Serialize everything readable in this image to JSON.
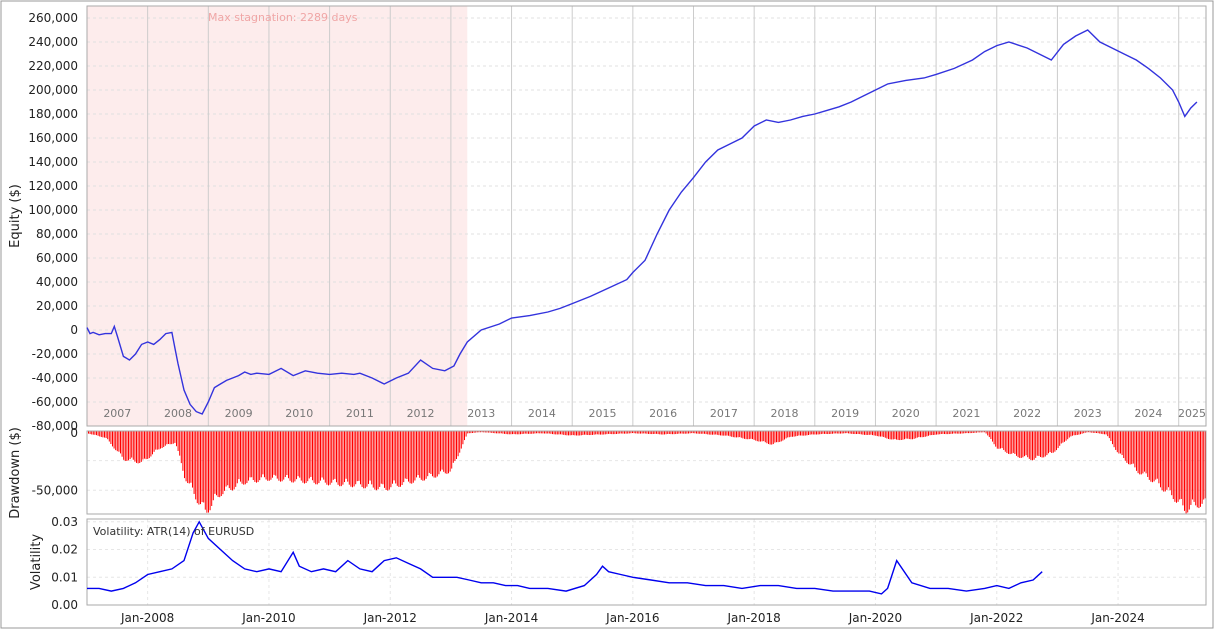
{
  "chart_data": [
    {
      "type": "line",
      "panel": "equity",
      "ylabel": "Equity ($)",
      "ylim": [
        -80000,
        270000
      ],
      "yticks": [
        -80000,
        -60000,
        -40000,
        -20000,
        0,
        20000,
        40000,
        60000,
        80000,
        100000,
        120000,
        140000,
        160000,
        180000,
        200000,
        220000,
        240000,
        260000
      ],
      "ytick_labels": [
        "-80,000",
        "-60,000",
        "-40,000",
        "-20,000",
        "0",
        "20,000",
        "40,000",
        "60,000",
        "80,000",
        "100,000",
        "120,000",
        "140,000",
        "160,000",
        "180,000",
        "200,000",
        "220,000",
        "240,000",
        "260,000"
      ],
      "year_labels": [
        "2007",
        "2008",
        "2009",
        "2010",
        "2011",
        "2012",
        "2013",
        "2014",
        "2015",
        "2016",
        "2017",
        "2018",
        "2019",
        "2020",
        "2021",
        "2022",
        "2023",
        "2024",
        "2025"
      ],
      "highlight": {
        "x_start": 2007.0,
        "x_end": 2013.27,
        "label": "Max stagnation: 2289 days",
        "color": "#fdecec"
      },
      "series": [
        {
          "color": "#3333dd",
          "x": [
            2007.0,
            2007.05,
            2007.1,
            2007.2,
            2007.3,
            2007.4,
            2007.45,
            2007.5,
            2007.6,
            2007.7,
            2007.8,
            2007.9,
            2008.0,
            2008.1,
            2008.2,
            2008.3,
            2008.4,
            2008.45,
            2008.5,
            2008.6,
            2008.7,
            2008.8,
            2008.9,
            2009.0,
            2009.1,
            2009.2,
            2009.3,
            2009.4,
            2009.5,
            2009.6,
            2009.7,
            2009.8,
            2010.0,
            2010.2,
            2010.4,
            2010.6,
            2010.8,
            2011.0,
            2011.2,
            2011.4,
            2011.5,
            2011.7,
            2011.9,
            2012.1,
            2012.3,
            2012.5,
            2012.7,
            2012.9,
            2013.05,
            2013.15,
            2013.27,
            2013.5,
            2013.8,
            2014.0,
            2014.3,
            2014.6,
            2014.8,
            2015.0,
            2015.3,
            2015.6,
            2015.9,
            2016.0,
            2016.2,
            2016.4,
            2016.6,
            2016.8,
            2017.0,
            2017.2,
            2017.4,
            2017.6,
            2017.8,
            2018.0,
            2018.2,
            2018.4,
            2018.6,
            2018.8,
            2019.0,
            2019.2,
            2019.4,
            2019.6,
            2019.8,
            2020.0,
            2020.2,
            2020.5,
            2020.8,
            2021.0,
            2021.3,
            2021.6,
            2021.8,
            2022.0,
            2022.2,
            2022.5,
            2022.7,
            2022.9,
            2023.1,
            2023.3,
            2023.5,
            2023.7,
            2023.9,
            2024.1,
            2024.3,
            2024.5,
            2024.7,
            2024.9,
            2025.0,
            2025.1,
            2025.2,
            2025.3
          ],
          "y": [
            2000,
            -3000,
            -2000,
            -4000,
            -3000,
            -3000,
            3000,
            -5000,
            -22000,
            -25000,
            -20000,
            -12000,
            -10000,
            -12000,
            -8000,
            -3000,
            -2000,
            -15000,
            -28000,
            -50000,
            -62000,
            -68000,
            -70000,
            -60000,
            -48000,
            -45000,
            -42000,
            -40000,
            -38000,
            -35000,
            -37000,
            -36000,
            -37000,
            -32000,
            -38000,
            -34000,
            -36000,
            -37000,
            -36000,
            -37000,
            -36000,
            -40000,
            -45000,
            -40000,
            -36000,
            -25000,
            -32000,
            -34000,
            -30000,
            -20000,
            -10000,
            0,
            5000,
            10000,
            12000,
            15000,
            18000,
            22000,
            28000,
            35000,
            42000,
            48000,
            58000,
            80000,
            100000,
            115000,
            127000,
            140000,
            150000,
            155000,
            160000,
            170000,
            175000,
            173000,
            175000,
            178000,
            180000,
            183000,
            186000,
            190000,
            195000,
            200000,
            205000,
            208000,
            210000,
            213000,
            218000,
            225000,
            232000,
            237000,
            240000,
            235000,
            230000,
            225000,
            238000,
            245000,
            250000,
            240000,
            235000,
            230000,
            225000,
            218000,
            210000,
            200000,
            190000,
            178000,
            185000,
            190000
          ]
        }
      ]
    },
    {
      "type": "bar",
      "panel": "drawdown",
      "ylabel": "Drawdown ($)",
      "ylim": [
        -70000,
        0
      ],
      "yticks": [
        0,
        -50000
      ],
      "ytick_labels": [
        "0",
        "-50,000"
      ],
      "color": "#ff0000",
      "x": [
        2007.0,
        2007.3,
        2007.6,
        2007.9,
        2008.2,
        2008.45,
        2008.6,
        2008.8,
        2008.95,
        2009.2,
        2009.6,
        2010.0,
        2010.5,
        2011.0,
        2011.5,
        2011.9,
        2012.3,
        2012.7,
        2013.0,
        2013.27,
        2013.5,
        2014.0,
        2014.5,
        2015.0,
        2015.5,
        2016.0,
        2016.5,
        2017.0,
        2017.5,
        2018.0,
        2018.3,
        2018.6,
        2019.0,
        2019.5,
        2020.0,
        2020.3,
        2020.6,
        2021.0,
        2021.5,
        2021.8,
        2022.0,
        2022.3,
        2022.6,
        2022.9,
        2023.2,
        2023.5,
        2023.8,
        2024.0,
        2024.3,
        2024.6,
        2024.9,
        2025.1,
        2025.3
      ],
      "y": [
        -2000,
        -6000,
        -25000,
        -28000,
        -15000,
        -10000,
        -40000,
        -60000,
        -72000,
        -55000,
        -45000,
        -42000,
        -44000,
        -46000,
        -48000,
        -51000,
        -45000,
        -40000,
        -35000,
        -2000,
        -1000,
        -3000,
        -2000,
        -4000,
        -3000,
        -2000,
        -3000,
        -2000,
        -4000,
        -8000,
        -12000,
        -5000,
        -3000,
        -2000,
        -4000,
        -8000,
        -7000,
        -3000,
        -2000,
        -1000,
        -15000,
        -22000,
        -25000,
        -20000,
        -5000,
        -1000,
        -3000,
        -20000,
        -35000,
        -45000,
        -58000,
        -70000,
        -65000
      ]
    },
    {
      "type": "line",
      "panel": "volatility",
      "ylabel": "Volatility",
      "legend_text": "Volatility: ATR(14) of EURUSD",
      "ylim": [
        0,
        0.031
      ],
      "yticks": [
        0.0,
        0.01,
        0.02,
        0.03
      ],
      "ytick_labels": [
        "0.00",
        "0.01",
        "0.02",
        "0.03"
      ],
      "xtick_labels": [
        "Jan-2008",
        "Jan-2010",
        "Jan-2012",
        "Jan-2014",
        "Jan-2016",
        "Jan-2018",
        "Jan-2020",
        "Jan-2022",
        "Jan-2024"
      ],
      "xtick_values": [
        2008.0,
        2010.0,
        2012.0,
        2014.0,
        2016.0,
        2018.0,
        2020.0,
        2022.0,
        2024.0
      ],
      "series": [
        {
          "color": "#0000ee",
          "x": [
            2007.0,
            2007.2,
            2007.4,
            2007.6,
            2007.8,
            2008.0,
            2008.2,
            2008.4,
            2008.6,
            2008.75,
            2008.85,
            2009.0,
            2009.2,
            2009.4,
            2009.6,
            2009.8,
            2010.0,
            2010.2,
            2010.4,
            2010.5,
            2010.7,
            2010.9,
            2011.1,
            2011.3,
            2011.5,
            2011.7,
            2011.9,
            2012.1,
            2012.3,
            2012.5,
            2012.7,
            2012.9,
            2013.1,
            2013.3,
            2013.5,
            2013.7,
            2013.9,
            2014.1,
            2014.3,
            2014.6,
            2014.9,
            2015.2,
            2015.4,
            2015.5,
            2015.6,
            2015.8,
            2016.0,
            2016.3,
            2016.6,
            2016.9,
            2017.2,
            2017.5,
            2017.8,
            2018.1,
            2018.4,
            2018.7,
            2019.0,
            2019.3,
            2019.6,
            2019.9,
            2020.1,
            2020.2,
            2020.35,
            2020.6,
            2020.9,
            2021.2,
            2021.5,
            2021.8,
            2022.0,
            2022.2,
            2022.4,
            2022.6,
            2022.75
          ],
          "y": [
            0.006,
            0.006,
            0.005,
            0.006,
            0.008,
            0.011,
            0.012,
            0.013,
            0.016,
            0.026,
            0.03,
            0.024,
            0.02,
            0.016,
            0.013,
            0.012,
            0.013,
            0.012,
            0.019,
            0.014,
            0.012,
            0.013,
            0.012,
            0.016,
            0.013,
            0.012,
            0.016,
            0.017,
            0.015,
            0.013,
            0.01,
            0.01,
            0.01,
            0.009,
            0.008,
            0.008,
            0.007,
            0.007,
            0.006,
            0.006,
            0.005,
            0.007,
            0.011,
            0.014,
            0.012,
            0.011,
            0.01,
            0.009,
            0.008,
            0.008,
            0.007,
            0.007,
            0.006,
            0.007,
            0.007,
            0.006,
            0.006,
            0.005,
            0.005,
            0.005,
            0.004,
            0.006,
            0.016,
            0.008,
            0.006,
            0.006,
            0.005,
            0.006,
            0.007,
            0.006,
            0.008,
            0.009,
            0.012
          ]
        }
      ]
    }
  ]
}
